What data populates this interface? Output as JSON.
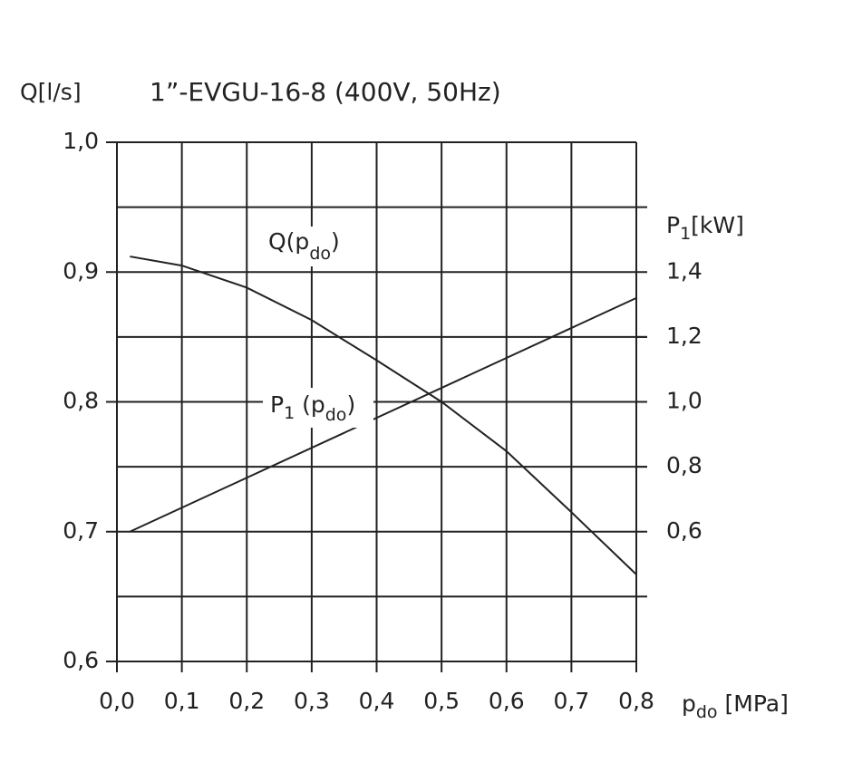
{
  "chart_data": {
    "type": "line",
    "title": "1”-EVGU-16-8 (400V, 50Hz)",
    "ylabel": "Q[l/s]",
    "y2label": {
      "text": "P",
      "sub": "1",
      "after": "[kW]"
    },
    "xlabel": {
      "text": "p",
      "sub": "do",
      "after": " [MPa]"
    },
    "xlim": [
      0,
      0.8
    ],
    "ylim": [
      0.6,
      1.0
    ],
    "y2lim": [
      0.2,
      1.8
    ],
    "xticks": [
      {
        "value": 0,
        "label": "0,0"
      },
      {
        "value": 0.1,
        "label": "0,1"
      },
      {
        "value": 0.2,
        "label": "0,2"
      },
      {
        "value": 0.3,
        "label": "0,3"
      },
      {
        "value": 0.4,
        "label": "0,4"
      },
      {
        "value": 0.5,
        "label": "0,5"
      },
      {
        "value": 0.6,
        "label": "0,6"
      },
      {
        "value": 0.7,
        "label": "0,7"
      },
      {
        "value": 0.8,
        "label": "0,8"
      }
    ],
    "yticks": [
      {
        "value": 0.6,
        "label": "0,6"
      },
      {
        "value": 0.7,
        "label": "0,7"
      },
      {
        "value": 0.8,
        "label": "0,8"
      },
      {
        "value": 0.9,
        "label": "0,9"
      },
      {
        "value": 1.0,
        "label": "1,0"
      }
    ],
    "y2ticks": [
      {
        "value": 0.6,
        "label": "0,6"
      },
      {
        "value": 0.8,
        "label": "0,8"
      },
      {
        "value": 1.0,
        "label": "1,0"
      },
      {
        "value": 1.2,
        "label": "1,2"
      },
      {
        "value": 1.4,
        "label": "1,4"
      }
    ],
    "ygrid": [
      0.65,
      0.75,
      0.85,
      0.95
    ],
    "grid": true,
    "series": [
      {
        "name": {
          "text": "Q(p",
          "sub": "do",
          "after": ")"
        },
        "color": "#222222",
        "x": [
          0.02,
          0.1,
          0.2,
          0.3,
          0.4,
          0.5,
          0.6,
          0.7,
          0.8
        ],
        "values": [
          0.912,
          0.905,
          0.888,
          0.863,
          0.832,
          0.8,
          0.762,
          0.715,
          0.667
        ]
      },
      {
        "name": {
          "text": "P",
          "sub": "1",
          "after": " (p",
          "sub2": "do",
          "after2": ")"
        },
        "color": "#222222",
        "axis": "y2",
        "x": [
          0.02,
          0.8
        ],
        "values": [
          0.6,
          1.32
        ]
      }
    ]
  }
}
